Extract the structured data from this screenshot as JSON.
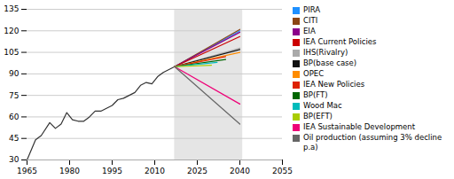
{
  "chart_data": {
    "type": "line",
    "xlim": [
      1965,
      2055
    ],
    "ylim": [
      30,
      135
    ],
    "xticks": [
      1965,
      1980,
      1995,
      2010,
      2025,
      2040,
      2055
    ],
    "yticks": [
      30,
      45,
      60,
      75,
      90,
      105,
      120,
      135
    ],
    "grid": "y",
    "legend": "right",
    "marker": "square",
    "shade": {
      "x": [
        2017,
        2041
      ],
      "color": "#e5e5e5"
    },
    "series": [
      {
        "color": "#333333",
        "x": [
          1965,
          1968,
          1970,
          1973,
          1975,
          1977,
          1979,
          1981,
          1983,
          1985,
          1987,
          1989,
          1991,
          1993,
          1995,
          1997,
          1999,
          2001,
          2003,
          2005,
          2007,
          2009,
          2011,
          2013,
          2015,
          2017
        ],
        "values": [
          30,
          44,
          47,
          56,
          52,
          55,
          63,
          58,
          57,
          57,
          60,
          64,
          64,
          66,
          68,
          72,
          73,
          75,
          77,
          82,
          84,
          83,
          88,
          91,
          93,
          95
        ]
      },
      {
        "name": "PIRA",
        "color": "#1e90ff",
        "x": [
          2017,
          2040
        ],
        "values": [
          95,
          120
        ]
      },
      {
        "name": "CITI",
        "color": "#8B4513",
        "x": [
          2017,
          2040
        ],
        "values": [
          95,
          121
        ]
      },
      {
        "name": "EIA",
        "color": "#8B008B",
        "x": [
          2017,
          2040
        ],
        "values": [
          95,
          119
        ]
      },
      {
        "name": "IEA Current Policies",
        "color": "#cc0000",
        "x": [
          2017,
          2040
        ],
        "values": [
          95,
          116
        ]
      },
      {
        "name": "IHS(Rivalry)",
        "color": "#aaaaaa",
        "x": [
          2017,
          2040
        ],
        "values": [
          95,
          108
        ]
      },
      {
        "name": "BP(base case)",
        "color": "#111111",
        "x": [
          2017,
          2040
        ],
        "values": [
          95,
          107
        ]
      },
      {
        "name": "OPEC",
        "color": "#ff8c00",
        "x": [
          2017,
          2040
        ],
        "values": [
          95,
          105
        ]
      },
      {
        "name": "IEA New Policies",
        "color": "#dd2200",
        "x": [
          2017,
          2035
        ],
        "values": [
          95,
          102
        ]
      },
      {
        "name": "BP(FT)",
        "color": "#006600",
        "x": [
          2017,
          2035
        ],
        "values": [
          95,
          100
        ]
      },
      {
        "name": "Wood Mac",
        "color": "#00bbbb",
        "x": [
          2017,
          2032
        ],
        "values": [
          95,
          98
        ]
      },
      {
        "name": "BP(EFT)",
        "color": "#aacc00",
        "x": [
          2017,
          2030
        ],
        "values": [
          95,
          96
        ]
      },
      {
        "name": "IEA Sustainable Development",
        "color": "#ee0077",
        "x": [
          2017,
          2040
        ],
        "values": [
          95,
          69
        ]
      },
      {
        "name": "Oil production (assuming 3% decline p.a)",
        "color": "#666666",
        "x": [
          2017,
          2040
        ],
        "values": [
          95,
          55
        ]
      }
    ]
  }
}
